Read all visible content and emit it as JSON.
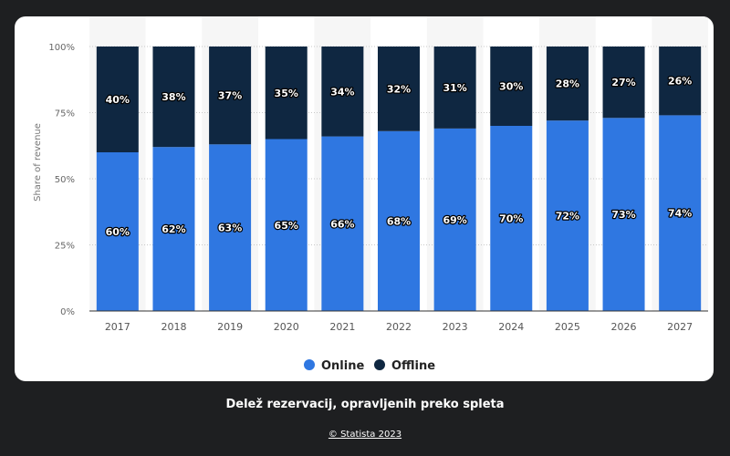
{
  "caption": "Delež rezervacij, opravljenih preko spleta",
  "credit": "© Statista 2023",
  "chart_data": {
    "type": "bar",
    "stacked": true,
    "categories": [
      "2017",
      "2018",
      "2019",
      "2020",
      "2021",
      "2022",
      "2023",
      "2024",
      "2025",
      "2026",
      "2027"
    ],
    "series": [
      {
        "name": "Online",
        "color": "#2f77e1",
        "values": [
          60,
          62,
          63,
          65,
          66,
          68,
          69,
          70,
          72,
          73,
          74
        ]
      },
      {
        "name": "Offline",
        "color": "#0f2741",
        "values": [
          40,
          38,
          37,
          35,
          34,
          32,
          31,
          30,
          28,
          27,
          26
        ]
      }
    ],
    "ylabel": "Share of revenue",
    "xlabel": "",
    "yticks": [
      "0%",
      "25%",
      "50%",
      "75%",
      "100%"
    ],
    "ylim": [
      0,
      100
    ],
    "grid": true,
    "legend": "bottom"
  }
}
